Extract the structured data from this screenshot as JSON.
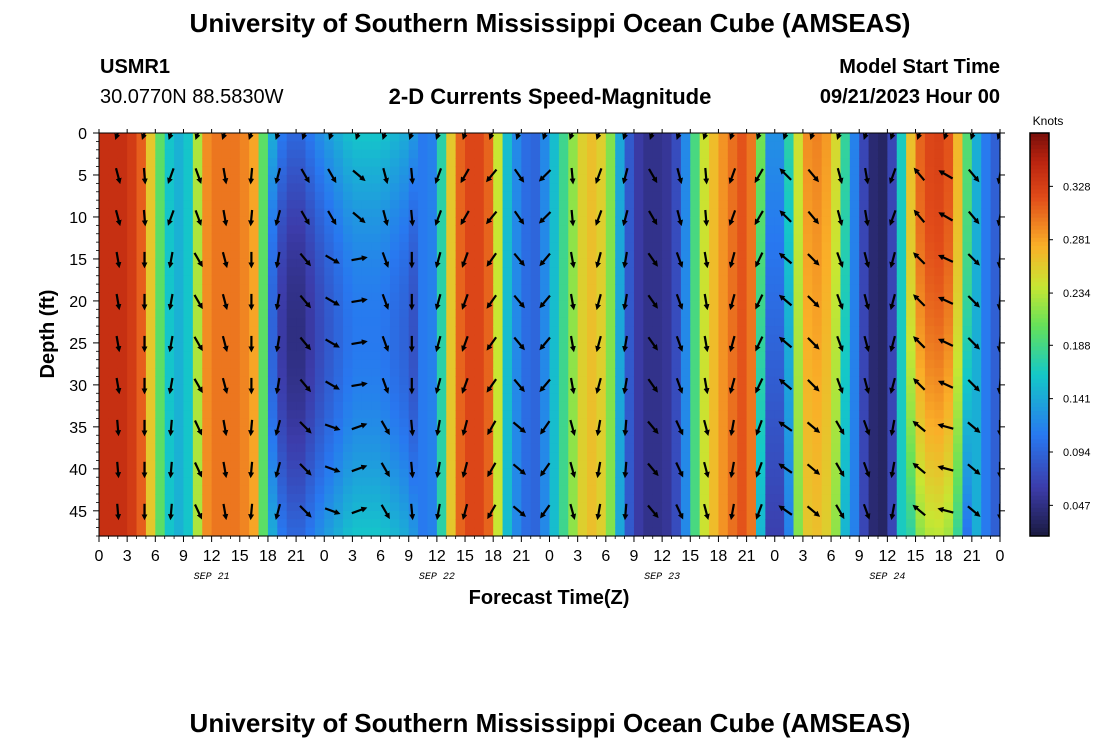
{
  "header": {
    "title": "University of Southern Mississippi Ocean Cube (AMSEAS)",
    "station_id": "USMR1",
    "coords": "30.0770N  88.5830W",
    "subtitle": "2-D Currents Speed-Magnitude",
    "start_label": "Model Start Time",
    "start_value": "09/21/2023 Hour 00"
  },
  "footer": {
    "title": "University of Southern Mississippi Ocean Cube (AMSEAS)"
  },
  "chart_data": {
    "type": "heatmap",
    "title": "2-D Currents Speed-Magnitude",
    "xlabel": "Forecast Time(Z)",
    "ylabel": "Depth (ft)",
    "x_range": [
      0,
      96
    ],
    "y_range": [
      0,
      48
    ],
    "y_ticks": [
      0,
      5,
      10,
      15,
      20,
      25,
      30,
      35,
      40,
      45
    ],
    "x_tick_labels": [
      "0",
      "3",
      "6",
      "9",
      "12",
      "15",
      "18",
      "21",
      "0",
      "3",
      "6",
      "9",
      "12",
      "15",
      "18",
      "21",
      "0",
      "3",
      "6",
      "9",
      "12",
      "15",
      "18",
      "21",
      "0",
      "3",
      "6",
      "9",
      "12",
      "15",
      "18",
      "21",
      "0"
    ],
    "day_labels": [
      {
        "label": "SEP 21",
        "hour": 12
      },
      {
        "label": "SEP 22",
        "hour": 36
      },
      {
        "label": "SEP 23",
        "hour": 60
      },
      {
        "label": "SEP 24",
        "hour": 84
      }
    ],
    "colorbar": {
      "unit": "Knots",
      "range": [
        0.02,
        0.375
      ],
      "ticks": [
        "0.328",
        "0.281",
        "0.234",
        "0.188",
        "0.141",
        "0.094",
        "0.047"
      ],
      "tick_values": [
        0.328,
        0.281,
        0.234,
        0.188,
        0.141,
        0.094,
        0.047
      ]
    },
    "speed_profile_knots": [
      [
        0,
        0.34
      ],
      [
        3,
        0.34
      ],
      [
        5,
        0.3
      ],
      [
        6,
        0.22
      ],
      [
        7.5,
        0.16
      ],
      [
        9,
        0.14
      ],
      [
        10,
        0.18
      ],
      [
        11,
        0.28
      ],
      [
        12,
        0.3
      ],
      [
        15,
        0.3
      ],
      [
        16.5,
        0.28
      ],
      [
        18,
        0.16
      ],
      [
        19.5,
        0.11
      ],
      [
        21,
        0.09
      ],
      [
        22.5,
        0.11
      ],
      [
        24,
        0.13
      ],
      [
        27,
        0.16
      ],
      [
        30,
        0.16
      ],
      [
        33,
        0.14
      ],
      [
        35,
        0.1
      ],
      [
        36,
        0.13
      ],
      [
        37,
        0.22
      ],
      [
        38,
        0.3
      ],
      [
        40,
        0.33
      ],
      [
        42,
        0.3
      ],
      [
        43,
        0.18
      ],
      [
        44,
        0.13
      ],
      [
        45,
        0.11
      ],
      [
        46,
        0.09
      ],
      [
        47,
        0.1
      ],
      [
        48,
        0.14
      ],
      [
        49,
        0.17
      ],
      [
        50,
        0.2
      ],
      [
        51,
        0.24
      ],
      [
        52,
        0.27
      ],
      [
        54,
        0.25
      ],
      [
        55,
        0.18
      ],
      [
        56,
        0.1
      ],
      [
        57,
        0.07
      ],
      [
        58,
        0.05
      ],
      [
        60,
        0.05
      ],
      [
        61,
        0.06
      ],
      [
        62,
        0.09
      ],
      [
        63,
        0.15
      ],
      [
        64,
        0.23
      ],
      [
        66,
        0.28
      ],
      [
        68,
        0.31
      ],
      [
        69,
        0.32
      ],
      [
        70,
        0.28
      ],
      [
        71,
        0.14
      ],
      [
        72,
        0.11
      ],
      [
        73,
        0.14
      ],
      [
        74,
        0.21
      ],
      [
        75,
        0.28
      ],
      [
        76,
        0.3
      ],
      [
        78,
        0.28
      ],
      [
        79,
        0.22
      ],
      [
        80,
        0.14
      ],
      [
        81,
        0.09
      ],
      [
        82,
        0.05
      ],
      [
        83,
        0.03
      ],
      [
        84,
        0.04
      ],
      [
        85,
        0.1
      ],
      [
        86,
        0.23
      ],
      [
        87,
        0.3
      ],
      [
        89,
        0.33
      ],
      [
        91,
        0.31
      ],
      [
        92,
        0.23
      ],
      [
        93,
        0.16
      ],
      [
        94,
        0.13
      ],
      [
        95,
        0.09
      ],
      [
        96,
        0.09
      ]
    ],
    "vector_directions_deg": [
      [
        165,
        175,
        200,
        160,
        170,
        185,
        195,
        150,
        150,
        130,
        165,
        175,
        200,
        210,
        220,
        145,
        225,
        175,
        200,
        195,
        150,
        165,
        175,
        200,
        210,
        315,
        140,
        165,
        170,
        200,
        320,
        300,
        140,
        190
      ],
      [
        170,
        180,
        190,
        150,
        165,
        180,
        190,
        140,
        120,
        80,
        160,
        180,
        195,
        200,
        215,
        140,
        220,
        170,
        195,
        190,
        145,
        160,
        170,
        195,
        205,
        310,
        135,
        160,
        165,
        195,
        315,
        295,
        135,
        185
      ],
      [
        175,
        180,
        185,
        155,
        170,
        185,
        195,
        135,
        110,
        70,
        150,
        175,
        190,
        195,
        210,
        130,
        215,
        165,
        190,
        185,
        140,
        155,
        165,
        190,
        200,
        305,
        130,
        150,
        160,
        190,
        310,
        285,
        130,
        180
      ]
    ]
  }
}
